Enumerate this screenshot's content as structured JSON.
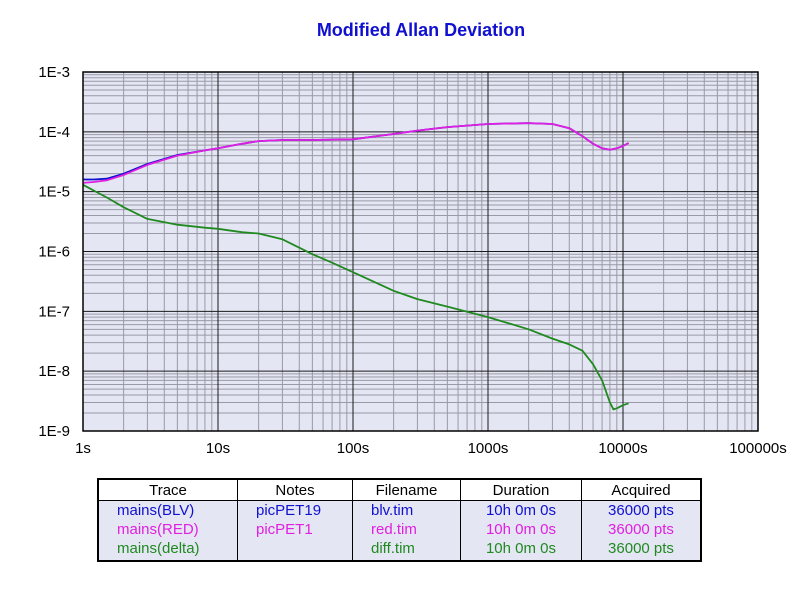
{
  "colors": {
    "title": "#1010d0",
    "plot_bg": "#e4e6f4",
    "grid_major": "#1a1a1a",
    "grid_minor": "#9a9aa6",
    "blv": "#1010d0",
    "red": "#e020e0",
    "delta": "#208a20"
  },
  "chart_data": {
    "type": "line",
    "title": "Modified Allan Deviation",
    "xlabel": "",
    "ylabel": "",
    "x_scale": "log",
    "y_scale": "log",
    "xlim": [
      1,
      100000
    ],
    "ylim": [
      1e-09,
      0.001
    ],
    "grid": true,
    "x_ticks": [
      "1s",
      "10s",
      "100s",
      "1000s",
      "10000s",
      "100000s"
    ],
    "y_ticks": [
      "1E-3",
      "1E-4",
      "1E-5",
      "1E-6",
      "1E-7",
      "1E-8",
      "1E-9"
    ],
    "series": [
      {
        "name": "mains(BLV)",
        "color": "#1010d0",
        "x": [
          1,
          1.2,
          1.5,
          2,
          3,
          5,
          8,
          10,
          15,
          20,
          30,
          50,
          100,
          200,
          300,
          500,
          1000,
          2000,
          3000,
          4000,
          5000,
          6000,
          7000,
          8000,
          9000,
          10000,
          11000
        ],
        "y": [
          1.6e-05,
          1.6e-05,
          1.65e-05,
          2e-05,
          2.9e-05,
          4.1e-05,
          4.9e-05,
          5.3e-05,
          6.3e-05,
          7e-05,
          7.3e-05,
          7.3e-05,
          7.5e-05,
          9.2e-05,
          0.000105,
          0.00012,
          0.000135,
          0.00014,
          0.000135,
          0.000115,
          8.5e-05,
          6.3e-05,
          5.3e-05,
          5e-05,
          5.3e-05,
          5.8e-05,
          6.5e-05
        ]
      },
      {
        "name": "mains(RED)",
        "color": "#e020e0",
        "x": [
          1,
          1.2,
          1.5,
          2,
          3,
          5,
          8,
          10,
          15,
          20,
          30,
          50,
          100,
          200,
          300,
          500,
          1000,
          2000,
          3000,
          4000,
          5000,
          6000,
          7000,
          8000,
          9000,
          10000,
          11000
        ],
        "y": [
          1.4e-05,
          1.45e-05,
          1.55e-05,
          1.9e-05,
          2.8e-05,
          4e-05,
          4.9e-05,
          5.3e-05,
          6.3e-05,
          7e-05,
          7.3e-05,
          7.3e-05,
          7.5e-05,
          9.2e-05,
          0.000105,
          0.00012,
          0.000135,
          0.00014,
          0.000135,
          0.000115,
          8.5e-05,
          6.3e-05,
          5.3e-05,
          5e-05,
          5.3e-05,
          5.8e-05,
          6.5e-05
        ]
      },
      {
        "name": "mains(delta)",
        "color": "#208a20",
        "x": [
          1,
          1.5,
          2,
          3,
          5,
          8,
          10,
          15,
          20,
          30,
          50,
          70,
          100,
          200,
          300,
          500,
          1000,
          2000,
          3000,
          4000,
          5000,
          6000,
          7000,
          8000,
          8500,
          9000,
          10000,
          11000
        ],
        "y": [
          1.3e-05,
          8e-06,
          5.5e-06,
          3.5e-06,
          2.8e-06,
          2.5e-06,
          2.4e-06,
          2.1e-06,
          2e-06,
          1.6e-06,
          9e-07,
          6.5e-07,
          4.5e-07,
          2.2e-07,
          1.6e-07,
          1.2e-07,
          8e-08,
          5e-08,
          3.5e-08,
          2.8e-08,
          2.2e-08,
          1.3e-08,
          7e-09,
          3e-09,
          2.3e-09,
          2.4e-09,
          2.7e-09,
          2.9e-09
        ]
      }
    ]
  },
  "legend_table": {
    "headers": [
      "Trace",
      "Notes",
      "Filename",
      "Duration",
      "Acquired"
    ],
    "rows": [
      {
        "color": "#1010d0",
        "cells": [
          "mains(BLV)",
          "picPET19",
          "blv.tim",
          "10h 0m 0s",
          "36000 pts"
        ]
      },
      {
        "color": "#e020e0",
        "cells": [
          "mains(RED)",
          "picPET1",
          "red.tim",
          "10h 0m 0s",
          "36000 pts"
        ]
      },
      {
        "color": "#208a20",
        "cells": [
          "mains(delta)",
          "",
          "diff.tim",
          "10h 0m 0s",
          "36000 pts"
        ]
      }
    ]
  }
}
